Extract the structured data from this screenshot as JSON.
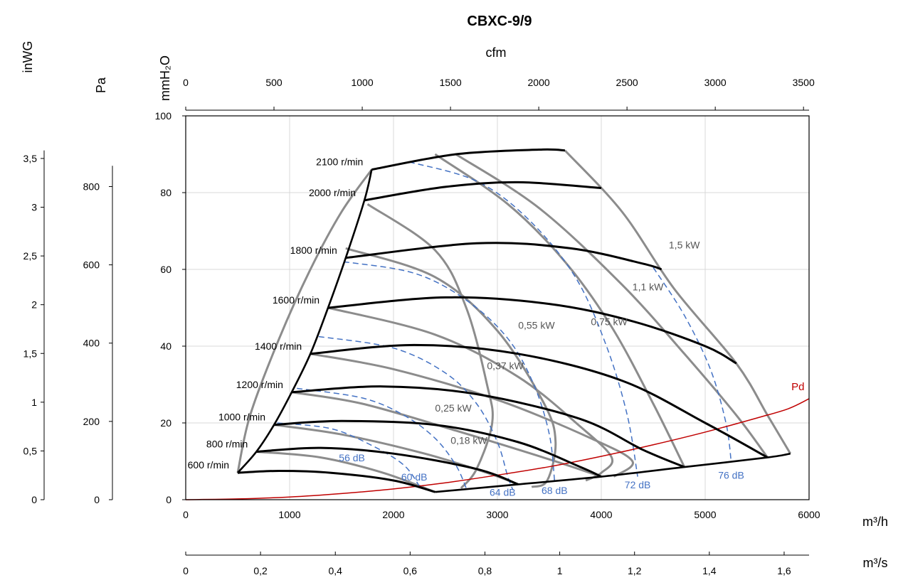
{
  "chart_data": {
    "type": "line",
    "title": "CBXC-9/9",
    "x_unit_bottom": "m³/h",
    "x_unit_secondary": "m³/s",
    "x_unit_top": "cfm",
    "y_unit_main": "mmH₂O",
    "y_unit_pa": "Pa",
    "y_unit_inwg": "inWG",
    "xlim": [
      0,
      6000
    ],
    "ylim": [
      0,
      100
    ],
    "grid": true,
    "x_ticks": [
      "0",
      "1000",
      "2000",
      "3000",
      "4000",
      "5000",
      "6000"
    ],
    "y_ticks": [
      "0",
      "20",
      "40",
      "60",
      "80",
      "100"
    ],
    "cfm_ticks": [
      "0",
      "500",
      "1000",
      "1500",
      "2000",
      "2500",
      "3000",
      "3500"
    ],
    "m3s_ticks": [
      "0",
      "0,2",
      "0,4",
      "0,6",
      "0,8",
      "1",
      "1,2",
      "1,4",
      "1,6"
    ],
    "pa_ticks": [
      "0",
      "200",
      "400",
      "600",
      "800"
    ],
    "inwg_ticks": [
      "0",
      "0,5",
      "1",
      "1,5",
      "2",
      "2,5",
      "3",
      "3,5"
    ],
    "speed_curves": [
      {
        "name": "600 r/min",
        "points": [
          [
            500,
            7
          ],
          [
            900,
            7.5
          ],
          [
            1400,
            7
          ],
          [
            2000,
            5
          ],
          [
            2400,
            2
          ]
        ]
      },
      {
        "name": "800 r/min",
        "points": [
          [
            680,
            12.5
          ],
          [
            1300,
            13.5
          ],
          [
            2000,
            12
          ],
          [
            2800,
            8
          ],
          [
            3200,
            4
          ]
        ]
      },
      {
        "name": "1000 r/min",
        "points": [
          [
            850,
            19.5
          ],
          [
            1500,
            20.5
          ],
          [
            2400,
            19.5
          ],
          [
            3200,
            15
          ],
          [
            3800,
            8.5
          ],
          [
            4000,
            6
          ]
        ]
      },
      {
        "name": "1200 r/min",
        "points": [
          [
            1020,
            28
          ],
          [
            1900,
            29.5
          ],
          [
            2800,
            27.5
          ],
          [
            3800,
            21
          ],
          [
            4400,
            13
          ],
          [
            4800,
            8.5
          ]
        ]
      },
      {
        "name": "1400 r/min",
        "points": [
          [
            1200,
            38
          ],
          [
            2200,
            40.3
          ],
          [
            3200,
            38
          ],
          [
            4200,
            31
          ],
          [
            5000,
            20
          ],
          [
            5600,
            11
          ]
        ]
      },
      {
        "name": "1600 r/min",
        "points": [
          [
            1370,
            50
          ],
          [
            2500,
            52.7
          ],
          [
            3500,
            51
          ],
          [
            4300,
            46.5
          ],
          [
            5000,
            40
          ],
          [
            5300,
            35.5
          ]
        ]
      },
      {
        "name": "1800 r/min",
        "points": [
          [
            1540,
            63
          ],
          [
            2800,
            66.8
          ],
          [
            3700,
            65.5
          ],
          [
            4400,
            61.5
          ],
          [
            4580,
            60
          ]
        ]
      },
      {
        "name": "2000 r/min",
        "points": [
          [
            1720,
            78
          ],
          [
            2500,
            81.5
          ],
          [
            3200,
            82.7
          ],
          [
            4000,
            81.2
          ]
        ]
      },
      {
        "name": "2100 r/min",
        "points": [
          [
            1790,
            86
          ],
          [
            2600,
            90
          ],
          [
            3400,
            91.2
          ],
          [
            3650,
            91
          ]
        ]
      }
    ],
    "power_curves": [
      {
        "name": "0,18 kW",
        "points": [
          [
            1790,
            86
          ],
          [
            1500,
            75
          ],
          [
            1200,
            60
          ],
          [
            900,
            42
          ],
          [
            620,
            22
          ],
          [
            500,
            7
          ]
        ]
      },
      {
        "name": "0,25 kW",
        "points": [
          [
            1750,
            77
          ],
          [
            2400,
            65
          ],
          [
            2700,
            50
          ],
          [
            2900,
            30
          ],
          [
            2950,
            20
          ],
          [
            2800,
            8
          ],
          [
            2650,
            3
          ]
        ]
      },
      {
        "name": "0,37 kW",
        "points": [
          [
            1540,
            65.5
          ],
          [
            2400,
            58
          ],
          [
            3000,
            44
          ],
          [
            3450,
            25
          ],
          [
            3560,
            15
          ],
          [
            3480,
            5
          ],
          [
            3330,
            3.3
          ]
        ]
      },
      {
        "name": "0,55 kW",
        "points": [
          [
            1370,
            50
          ],
          [
            2400,
            43
          ],
          [
            3200,
            32
          ],
          [
            3800,
            19
          ],
          [
            4100,
            11
          ],
          [
            4000,
            7
          ],
          [
            3850,
            5
          ]
        ]
      },
      {
        "name": "0,75 kW",
        "points": [
          [
            1200,
            38
          ],
          [
            2000,
            34
          ],
          [
            3000,
            26
          ],
          [
            3900,
            16
          ],
          [
            4300,
            10
          ],
          [
            4120,
            6
          ]
        ]
      },
      {
        "name": "1,1 kW",
        "points": [
          [
            1020,
            28
          ],
          [
            1700,
            25
          ],
          [
            2600,
            18
          ],
          [
            3500,
            10.5
          ],
          [
            4000,
            6
          ]
        ]
      },
      {
        "name": "1,5 kW",
        "points": [
          [
            850,
            19.5
          ],
          [
            1500,
            17
          ],
          [
            2300,
            12
          ],
          [
            2900,
            7
          ],
          [
            3200,
            4
          ]
        ]
      },
      {
        "name": "",
        "points": [
          [
            680,
            12.5
          ],
          [
            1300,
            11
          ],
          [
            1900,
            7
          ],
          [
            2400,
            2
          ]
        ]
      },
      {
        "name": "",
        "points": [
          [
            2400,
            90
          ],
          [
            3100,
            77
          ],
          [
            3650,
            62
          ],
          [
            4100,
            45
          ],
          [
            4500,
            25
          ],
          [
            4800,
            8.5
          ]
        ]
      },
      {
        "name": "",
        "points": [
          [
            2600,
            90
          ],
          [
            3400,
            76
          ],
          [
            4200,
            56
          ],
          [
            4800,
            38
          ],
          [
            5300,
            22
          ],
          [
            5600,
            11
          ]
        ]
      },
      {
        "name": "",
        "points": [
          [
            3650,
            91
          ],
          [
            4200,
            75
          ],
          [
            4700,
            55
          ],
          [
            5300,
            35.5
          ],
          [
            5600,
            22
          ],
          [
            5820,
            12
          ]
        ]
      }
    ],
    "outer_envelope": {
      "points": [
        [
          500,
          7
        ],
        [
          680,
          12.5
        ],
        [
          850,
          19.5
        ],
        [
          1020,
          28
        ],
        [
          1200,
          38
        ],
        [
          1370,
          50
        ],
        [
          1540,
          63
        ],
        [
          1720,
          78
        ],
        [
          1790,
          86
        ]
      ]
    },
    "bottom_envelope": {
      "points": [
        [
          2400,
          2
        ],
        [
          3200,
          4
        ],
        [
          4000,
          6
        ],
        [
          4800,
          8.5
        ],
        [
          5600,
          11
        ],
        [
          5820,
          12
        ]
      ]
    },
    "noise_curves": [
      {
        "name": "56 dB",
        "points": [
          [
            880,
            20
          ],
          [
            1400,
            18.5
          ],
          [
            1800,
            14
          ],
          [
            2100,
            9
          ],
          [
            2250,
            3.5
          ]
        ]
      },
      {
        "name": "60 dB",
        "points": [
          [
            1070,
            29
          ],
          [
            1700,
            26.5
          ],
          [
            2100,
            22
          ],
          [
            2400,
            16
          ],
          [
            2600,
            9
          ],
          [
            2700,
            3
          ]
        ]
      },
      {
        "name": "64 dB",
        "points": [
          [
            1280,
            42.5
          ],
          [
            2000,
            39.5
          ],
          [
            2500,
            33
          ],
          [
            2800,
            25
          ],
          [
            3000,
            15
          ],
          [
            3100,
            6
          ],
          [
            3150,
            2.5
          ]
        ]
      },
      {
        "name": "68 dB",
        "points": [
          [
            1520,
            62
          ],
          [
            2200,
            59
          ],
          [
            2700,
            52
          ],
          [
            3100,
            42
          ],
          [
            3350,
            30
          ],
          [
            3500,
            17
          ],
          [
            3550,
            5
          ]
        ]
      },
      {
        "name": "72 dB",
        "points": [
          [
            2150,
            88
          ],
          [
            2800,
            83
          ],
          [
            3300,
            73
          ],
          [
            3750,
            58
          ],
          [
            4050,
            40
          ],
          [
            4250,
            22
          ],
          [
            4350,
            6
          ]
        ]
      },
      {
        "name": "76 dB",
        "points": [
          [
            4500,
            60.5
          ],
          [
            4800,
            48
          ],
          [
            5050,
            34
          ],
          [
            5200,
            20
          ],
          [
            5250,
            10
          ]
        ]
      }
    ],
    "pd_curve": {
      "name": "Pd",
      "points": [
        [
          0,
          0
        ],
        [
          500,
          0.2
        ],
        [
          1000,
          0.7
        ],
        [
          1500,
          1.6
        ],
        [
          2000,
          2.8
        ],
        [
          2500,
          4.4
        ],
        [
          3000,
          6.4
        ],
        [
          3500,
          8.6
        ],
        [
          4000,
          11.3
        ],
        [
          4500,
          14.3
        ],
        [
          5000,
          17.6
        ],
        [
          5500,
          21.3
        ],
        [
          5800,
          23.7
        ],
        [
          6000,
          26.3
        ]
      ]
    }
  }
}
